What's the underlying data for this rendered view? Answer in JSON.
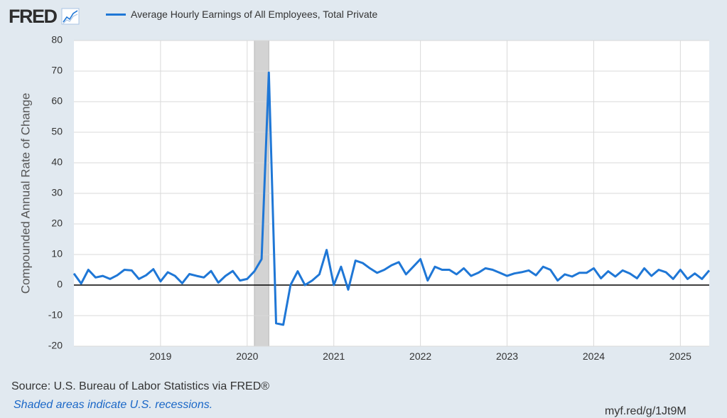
{
  "header": {
    "logo_text": "FRED",
    "logo_icon": "line-chart-icon",
    "legend_label": "Average Hourly Earnings of All Employees, Total Private",
    "series_color": "#1f77d6"
  },
  "footer": {
    "source": "Source: U.S. Bureau of Labor Statistics via FRED®",
    "note": "Shaded areas indicate U.S. recessions.",
    "url": "myf.red/g/1Jt9M"
  },
  "chart_data": {
    "type": "line",
    "title": "",
    "xlabel": "",
    "ylabel": "Compounded Annual Rate of Change",
    "ylim": [
      -20,
      80
    ],
    "yticks": [
      -20,
      -10,
      0,
      10,
      20,
      30,
      40,
      50,
      60,
      70,
      80
    ],
    "x_range": [
      "2018-01",
      "2025-05"
    ],
    "xticks": [
      "2019",
      "2020",
      "2021",
      "2022",
      "2023",
      "2024",
      "2025"
    ],
    "grid": true,
    "zero_line": true,
    "recession": {
      "start": "2020-02",
      "end": "2020-04",
      "color": "#d3d3d3"
    },
    "series": [
      {
        "name": "Average Hourly Earnings of All Employees, Total Private",
        "x": [
          "2018-01",
          "2018-02",
          "2018-03",
          "2018-04",
          "2018-05",
          "2018-06",
          "2018-07",
          "2018-08",
          "2018-09",
          "2018-10",
          "2018-11",
          "2018-12",
          "2019-01",
          "2019-02",
          "2019-03",
          "2019-04",
          "2019-05",
          "2019-06",
          "2019-07",
          "2019-08",
          "2019-09",
          "2019-10",
          "2019-11",
          "2019-12",
          "2020-01",
          "2020-02",
          "2020-03",
          "2020-04",
          "2020-05",
          "2020-06",
          "2020-07",
          "2020-08",
          "2020-09",
          "2020-10",
          "2020-11",
          "2020-12",
          "2021-01",
          "2021-02",
          "2021-03",
          "2021-04",
          "2021-05",
          "2021-06",
          "2021-07",
          "2021-08",
          "2021-09",
          "2021-10",
          "2021-11",
          "2021-12",
          "2022-01",
          "2022-02",
          "2022-03",
          "2022-04",
          "2022-05",
          "2022-06",
          "2022-07",
          "2022-08",
          "2022-09",
          "2022-10",
          "2022-11",
          "2022-12",
          "2023-01",
          "2023-02",
          "2023-03",
          "2023-04",
          "2023-05",
          "2023-06",
          "2023-07",
          "2023-08",
          "2023-09",
          "2023-10",
          "2023-11",
          "2023-12",
          "2024-01",
          "2024-02",
          "2024-03",
          "2024-04",
          "2024-05",
          "2024-06",
          "2024-07",
          "2024-08",
          "2024-09",
          "2024-10",
          "2024-11",
          "2024-12",
          "2025-01",
          "2025-02",
          "2025-03",
          "2025-04",
          "2025-05"
        ],
        "values": [
          3.8,
          0.5,
          5.0,
          2.5,
          3.0,
          2.0,
          3.2,
          5.0,
          4.8,
          2.0,
          3.2,
          5.2,
          1.2,
          4.2,
          3.0,
          0.6,
          3.6,
          3.0,
          2.5,
          4.6,
          0.8,
          3.0,
          4.6,
          1.5,
          2.0,
          4.5,
          8.5,
          69.5,
          -12.5,
          -13.0,
          0.0,
          4.5,
          0.0,
          1.5,
          3.5,
          11.5,
          0.0,
          6.0,
          -1.5,
          8.0,
          7.2,
          5.5,
          4.0,
          5.0,
          6.5,
          7.5,
          3.5,
          6.0,
          8.5,
          1.5,
          6.0,
          5.0,
          5.0,
          3.5,
          5.5,
          3.0,
          4.0,
          5.5,
          5.0,
          4.0,
          3.0,
          3.8,
          4.2,
          4.8,
          3.2,
          6.0,
          5.0,
          1.5,
          3.5,
          2.8,
          4.0,
          4.0,
          5.5,
          2.2,
          4.5,
          2.8,
          4.8,
          3.8,
          2.2,
          5.5,
          3.0,
          5.0,
          4.2,
          2.0,
          5.0,
          2.0,
          3.8,
          2.0,
          4.8
        ]
      }
    ]
  }
}
